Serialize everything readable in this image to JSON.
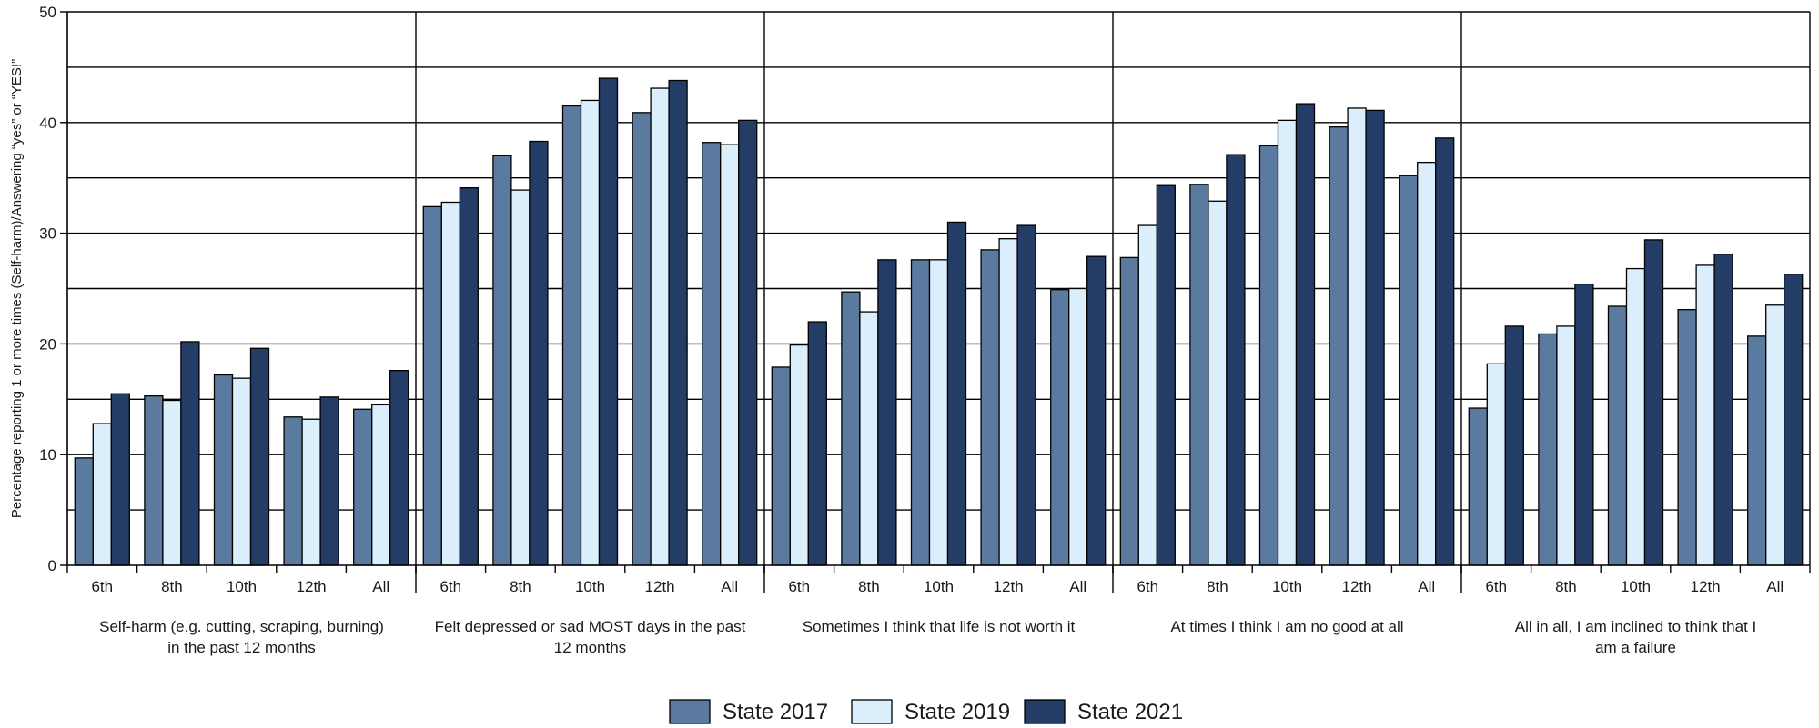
{
  "chart_data": {
    "type": "bar",
    "ylabel": "Percentage reporting 1 or more times (Self-harm)/Answering “yes” or “YES!”",
    "xlabel": "",
    "ylim": [
      0,
      50
    ],
    "yticks": [
      0,
      10,
      20,
      30,
      40,
      50
    ],
    "grid": true,
    "legend_position": "bottom",
    "subcategories": [
      "6th",
      "8th",
      "10th",
      "12th",
      "All"
    ],
    "groups": [
      {
        "label_lines": [
          "Self-harm (e.g. cutting, scraping, burning)",
          "in the past 12 months"
        ],
        "values": [
          [
            9.7,
            12.8,
            15.5
          ],
          [
            15.3,
            14.9,
            20.2
          ],
          [
            17.2,
            16.9,
            19.6
          ],
          [
            13.4,
            13.2,
            15.2
          ],
          [
            14.1,
            14.5,
            17.6
          ]
        ]
      },
      {
        "label_lines": [
          "Felt depressed or sad MOST days in the past",
          "12 months"
        ],
        "values": [
          [
            32.4,
            32.8,
            34.1
          ],
          [
            37.0,
            33.9,
            38.3
          ],
          [
            41.5,
            42.0,
            44.0
          ],
          [
            40.9,
            43.1,
            43.8
          ],
          [
            38.2,
            38.0,
            40.2
          ]
        ]
      },
      {
        "label_lines": [
          "Sometimes I think that life is not worth it"
        ],
        "values": [
          [
            17.9,
            19.9,
            22.0
          ],
          [
            24.7,
            22.9,
            27.6
          ],
          [
            27.6,
            27.6,
            31.0
          ],
          [
            28.5,
            29.5,
            30.7
          ],
          [
            24.9,
            25.0,
            27.9
          ]
        ]
      },
      {
        "label_lines": [
          "At times I think I am no good at all"
        ],
        "values": [
          [
            27.8,
            30.7,
            34.3
          ],
          [
            34.4,
            32.9,
            37.1
          ],
          [
            37.9,
            40.2,
            41.7
          ],
          [
            39.6,
            41.3,
            41.1
          ],
          [
            35.2,
            36.4,
            38.6
          ]
        ]
      },
      {
        "label_lines": [
          "All in all, I am inclined to think that I",
          "am a failure"
        ],
        "values": [
          [
            14.2,
            18.2,
            21.6
          ],
          [
            20.9,
            21.6,
            25.4
          ],
          [
            23.4,
            26.8,
            29.4
          ],
          [
            23.1,
            27.1,
            28.1
          ],
          [
            20.7,
            23.5,
            26.3
          ]
        ]
      }
    ],
    "series": [
      {
        "name": "State 2017",
        "color": "#5b7aa0"
      },
      {
        "name": "State 2019",
        "color": "#dbeefb"
      },
      {
        "name": "State 2021",
        "color": "#243d66"
      }
    ]
  }
}
